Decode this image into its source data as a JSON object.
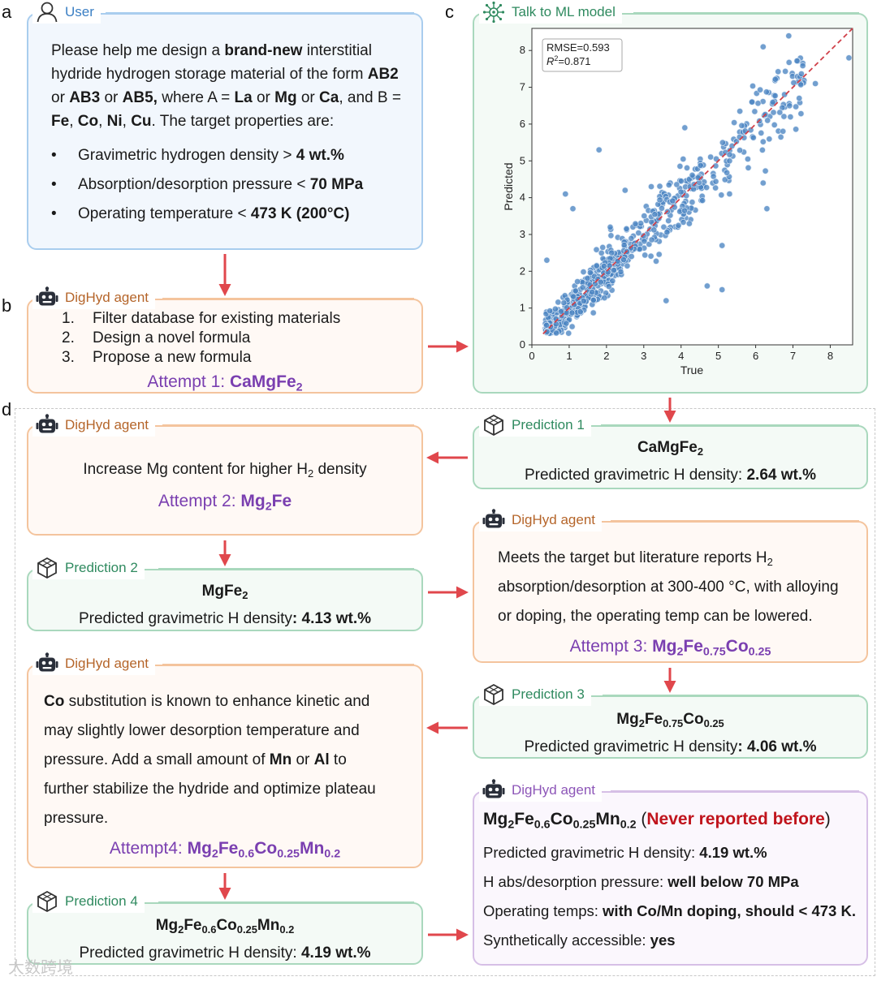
{
  "panels": {
    "a": "a",
    "b": "b",
    "c": "c",
    "d": "d"
  },
  "user": {
    "title": "User",
    "intro_1": "Please help me design a ",
    "intro_bold": "brand-new",
    "intro_2": " interstitial hydride hydrogen storage material of the form ",
    "ab2": "AB2",
    "or1": " or ",
    "ab3": "AB3",
    "or2": " or ",
    "ab5": "AB5,",
    "where": " where A = ",
    "la": "La",
    "or3": " or ",
    "mg": "Mg",
    "or4": " or ",
    "ca": "Ca",
    "and_b": ", and B = ",
    "fe": "Fe",
    "c1": ", ",
    "co": "Co",
    "c2": ", ",
    "ni": "Ni",
    "c3": ", ",
    "cu": "Cu",
    "target": ". The target properties are:",
    "bullets": [
      {
        "label": "Gravimetric hydrogen density > ",
        "value": "4 wt.%"
      },
      {
        "label": "Absorption/desorption pressure < ",
        "value": "70 MPa"
      },
      {
        "label": "Operating temperature < ",
        "value": "473 K (200°C)"
      }
    ]
  },
  "agent1": {
    "title": "DigHyd agent",
    "steps": [
      {
        "n": "1.",
        "text": "Filter database for existing materials"
      },
      {
        "n": "2.",
        "text": "Design a novel formula"
      },
      {
        "n": "3.",
        "text": "Propose a new formula"
      }
    ],
    "attempt_label": "Attempt 1: ",
    "formula": "CaMgFe",
    "formula_sub": "2"
  },
  "ml": {
    "title": "Talk to ML model"
  },
  "chart_data": {
    "type": "scatter",
    "xlabel": "True",
    "ylabel": "Predicted",
    "xlim": [
      0,
      8.6
    ],
    "ylim": [
      0,
      8.6
    ],
    "xticks": [
      "0",
      "1",
      "2",
      "3",
      "4",
      "5",
      "6",
      "7",
      "8"
    ],
    "yticks": [
      "0",
      "1",
      "2",
      "3",
      "4",
      "5",
      "6",
      "7",
      "8"
    ],
    "annotation_rmse": "RMSE=0.593",
    "annotation_r2_label": "R",
    "annotation_r2_sup": "2",
    "annotation_r2_value": "=0.871",
    "reference_line": "y = x",
    "outliers": [
      [
        0.9,
        4.1
      ],
      [
        1.1,
        3.7
      ],
      [
        1.8,
        5.3
      ],
      [
        4.1,
        5.9
      ],
      [
        6.2,
        8.1
      ],
      [
        8.5,
        7.8
      ],
      [
        7.6,
        7.1
      ],
      [
        4.7,
        1.6
      ],
      [
        5.1,
        2.7
      ],
      [
        5.1,
        1.5
      ],
      [
        2.5,
        4.2
      ],
      [
        2.1,
        3.2
      ],
      [
        6.3,
        3.7
      ],
      [
        5.3,
        5.0
      ],
      [
        0.4,
        2.3
      ],
      [
        1.3,
        0.9
      ],
      [
        3.2,
        4.3
      ],
      [
        5.9,
        6.6
      ],
      [
        3.6,
        1.2
      ],
      [
        6.2,
        4.4
      ]
    ]
  },
  "pred1": {
    "title": "Prediction 1",
    "formula": "CaMgFe",
    "formula_sub": "2",
    "label": "Predicted gravimetric H density: ",
    "value": "2.64 wt.%"
  },
  "agent2": {
    "title": "DigHyd agent",
    "text_1": "Increase Mg content for higher H",
    "text_sub": "2",
    "text_2": " density",
    "attempt_label": "Attempt 2: ",
    "f1": "Mg",
    "f1_sub": "2",
    "f2": "Fe"
  },
  "agent3": {
    "title": "DigHyd agent",
    "line1_a": "Meets the target but literature reports H",
    "line1_sub": "2",
    "line2": "absorption/desorption at 300-400 °C, with alloying",
    "line3": "or doping, the operating temp can be lowered.",
    "attempt_label": "Attempt 3: ",
    "f1": "Mg",
    "f1_sub": "2",
    "f2": "Fe",
    "f2_sub": "0.75",
    "f3": "Co",
    "f3_sub": "0.25"
  },
  "pred2": {
    "title": "Prediction 2",
    "formula": "MgFe",
    "formula_sub": "2",
    "label": "Predicted gravimetric H density",
    "value": ": 4.13 wt.%"
  },
  "pred3": {
    "title": "Prediction 3",
    "f1": "Mg",
    "f1_sub": "2",
    "f2": "Fe",
    "f2_sub": "0.75",
    "f3": "Co",
    "f3_sub": "0.25",
    "label": "Predicted gravimetric H density",
    "value": ": 4.06 wt.%"
  },
  "agent4": {
    "title": "DigHyd agent",
    "co": "Co",
    "t1": " substitution is known to enhance kinetic and",
    "t2": "may slightly lower desorption temperature and",
    "t3": "pressure. Add a small amount of ",
    "mn": "Mn",
    "or": " or ",
    "al": "Al",
    "to": " to",
    "t4": "further stabilize the hydride and optimize plateau",
    "t5": "pressure.",
    "attempt_label": "Attempt4: ",
    "f1": "Mg",
    "f1_sub": "2",
    "f2": "Fe",
    "f2_sub": "0.6",
    "f3": "Co",
    "f3_sub": "0.25",
    "f4": "Mn",
    "f4_sub": "0.2"
  },
  "agent5": {
    "title": "DigHyd agent",
    "f1": "Mg",
    "f1_sub": "2",
    "f2": "Fe",
    "f2_sub": "0.6",
    "f3": "Co",
    "f3_sub": "0.25",
    "f4": "Mn",
    "f4_sub": "0.2",
    "paren_open": " (",
    "never": "Never reported before",
    "paren_close": ")",
    "l2_label": "Predicted gravimetric H density: ",
    "l2_value": "4.19 wt.%",
    "l3_label": "H abs/desorption pressure: ",
    "l3_value": "well below 70 MPa",
    "l4_label": "Operating temps: ",
    "l4_value": "with Co/Mn doping, should < 473 K.",
    "l5_label": "Synthetically accessible: ",
    "l5_value": "yes"
  },
  "pred4": {
    "title": "Prediction 4",
    "f1": "Mg",
    "f1_sub": "2",
    "f2": "Fe",
    "f2_sub": "0.6",
    "f3": "Co",
    "f3_sub": "0.25",
    "f4": "Mn",
    "f4_sub": "0.2",
    "label": "Predicted gravimetric H density: ",
    "value": "4.19 wt.%"
  },
  "watermark": "大数跨境"
}
